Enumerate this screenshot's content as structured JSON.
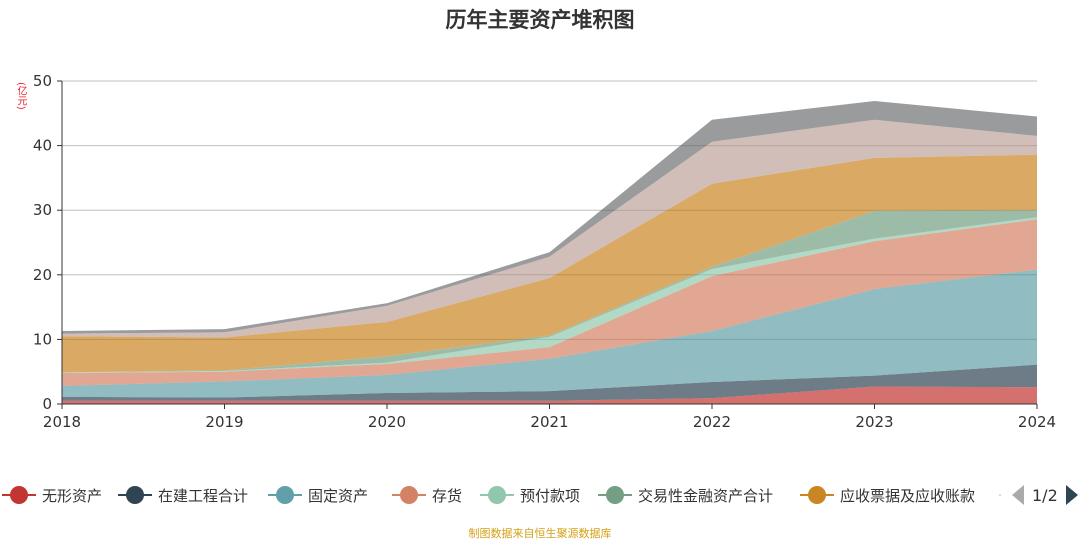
{
  "chart_data": {
    "type": "area",
    "stacked": true,
    "title": "历年主要资产堆积图",
    "ylabel": "(亿元)",
    "xlabel": "",
    "x": [
      "2018",
      "2019",
      "2020",
      "2021",
      "2022",
      "2023",
      "2024"
    ],
    "ylim": [
      0,
      50
    ],
    "yticks": [
      0,
      10,
      20,
      30,
      40,
      50
    ],
    "grid": true,
    "legend_position": "bottom",
    "series": [
      {
        "name": "无形资产",
        "color": "#c23531",
        "values": [
          0.5,
          0.5,
          0.5,
          0.5,
          0.9,
          2.7,
          2.6
        ]
      },
      {
        "name": "在建工程合计",
        "color": "#2f4554",
        "values": [
          0.6,
          0.5,
          1.2,
          1.5,
          2.5,
          1.7,
          3.5
        ]
      },
      {
        "name": "固定资产",
        "color": "#61a0a8",
        "values": [
          1.7,
          2.5,
          2.8,
          5.0,
          7.9,
          13.4,
          14.7
        ]
      },
      {
        "name": "存货",
        "color": "#d48265",
        "values": [
          2.0,
          1.5,
          1.7,
          1.8,
          8.5,
          7.4,
          7.8
        ]
      },
      {
        "name": "预付款项",
        "color": "#91c7ae",
        "values": [
          0.1,
          0.1,
          0.2,
          1.6,
          1.1,
          0.4,
          0.3
        ]
      },
      {
        "name": "交易性金融资产合计",
        "color": "#749f83",
        "values": [
          0.0,
          0.1,
          1.0,
          0.2,
          0.3,
          4.3,
          1.1
        ]
      },
      {
        "name": "应收票据及应收账款",
        "color": "#ca8622",
        "values": [
          5.6,
          5.1,
          5.3,
          8.9,
          12.9,
          8.2,
          8.6
        ]
      },
      {
        "name": "",
        "color": "#bda29a",
        "values": [
          0.4,
          0.8,
          2.5,
          3.3,
          6.5,
          5.9,
          2.9
        ]
      },
      {
        "name": "",
        "color": "#6e7074",
        "values": [
          0.4,
          0.5,
          0.4,
          0.7,
          3.4,
          2.9,
          3.0
        ]
      }
    ]
  },
  "legend": {
    "page": "1/2",
    "items": [
      "无形资产",
      "在建工程合计",
      "固定资产",
      "存货",
      "预付款项",
      "交易性金融资产合计",
      "应收票据及应收账款"
    ]
  },
  "source": "制图数据来自恒生聚源数据库"
}
